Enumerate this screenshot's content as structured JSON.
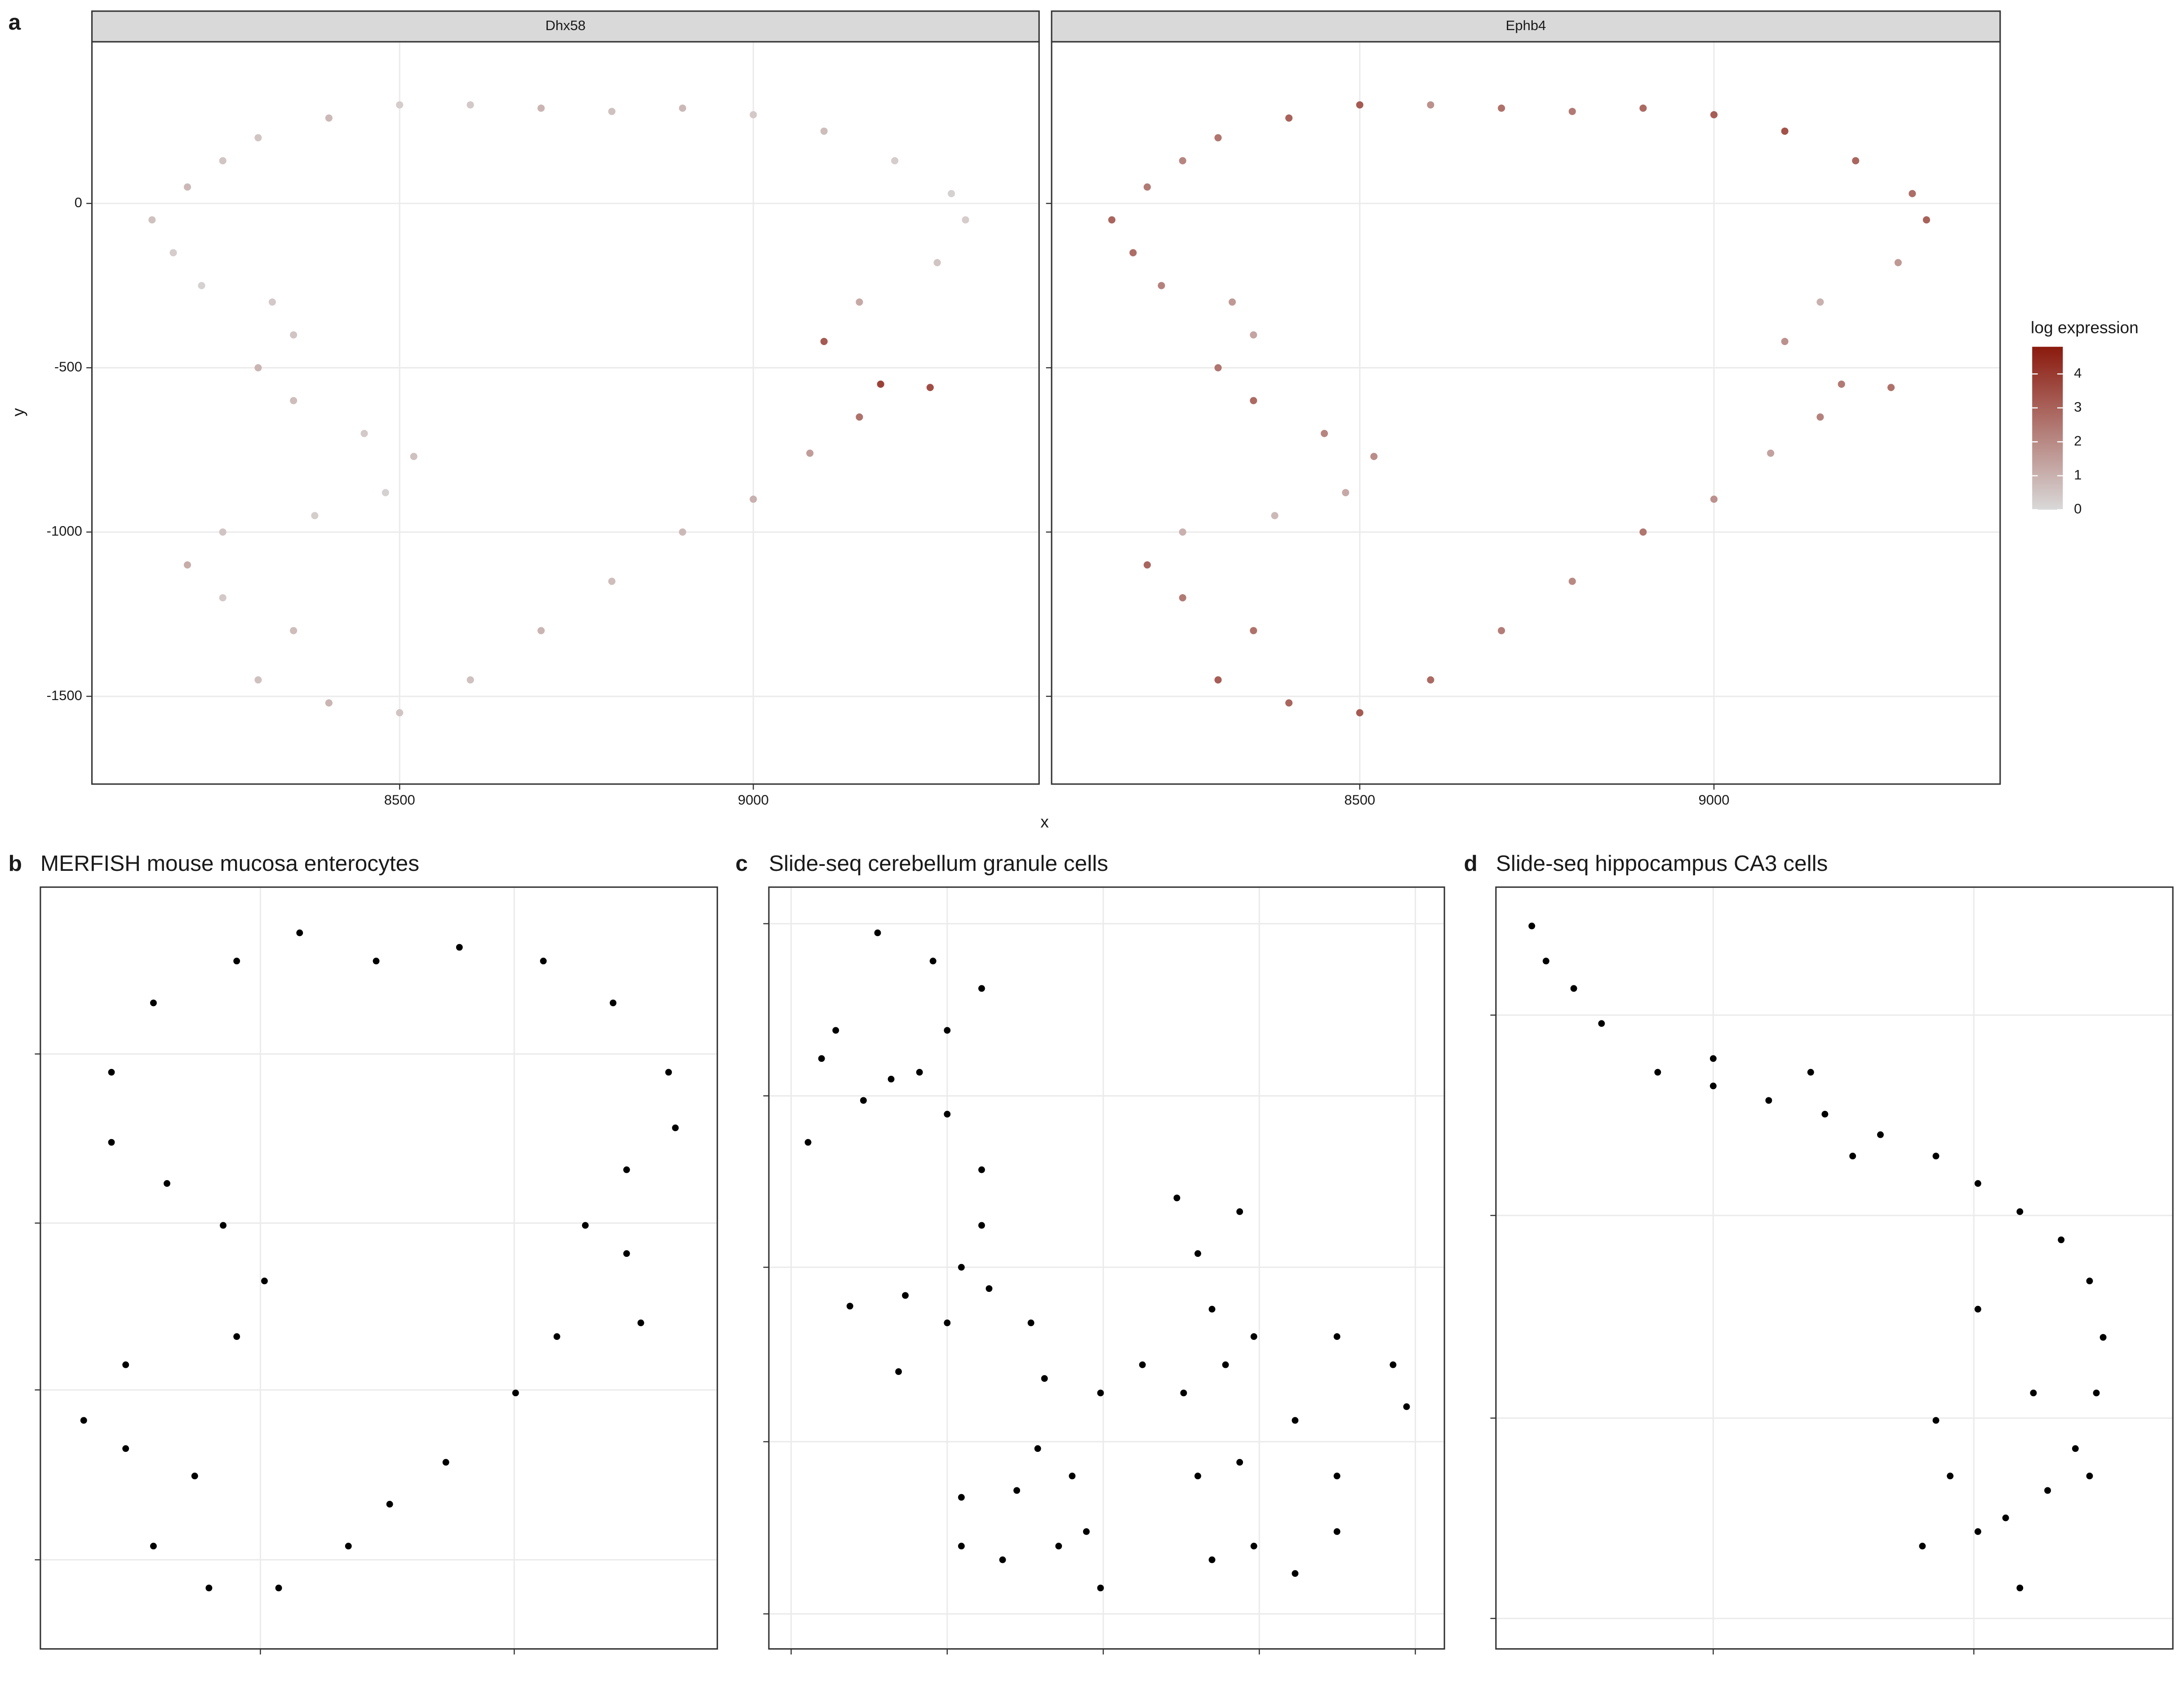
{
  "chart_data": [
    {
      "type": "scatter",
      "panel_label": "a",
      "xlabel": "x",
      "ylabel": "y",
      "x": [
        8300,
        8400,
        8500,
        8600,
        8700,
        8800,
        8900,
        9000,
        9100,
        9200,
        9280,
        9300,
        9260,
        9150,
        9100,
        9180,
        9250,
        9150,
        9080,
        9000,
        8900,
        8800,
        8700,
        8600,
        8500,
        8400,
        8300,
        8350,
        8250,
        8200,
        8250,
        8380,
        8480,
        8520,
        8450,
        8350,
        8300,
        8350,
        8320,
        8220,
        8180,
        8150,
        8200,
        8250
      ],
      "y": [
        200,
        260,
        300,
        300,
        290,
        280,
        290,
        270,
        220,
        130,
        30,
        -50,
        -180,
        -300,
        -420,
        -550,
        -560,
        -650,
        -760,
        -900,
        -1000,
        -1150,
        -1300,
        -1450,
        -1550,
        -1520,
        -1450,
        -1300,
        -1200,
        -1100,
        -1000,
        -950,
        -880,
        -770,
        -700,
        -600,
        -500,
        -400,
        -300,
        -250,
        -150,
        -50,
        50,
        130
      ],
      "series": [
        {
          "name": "Dhx58",
          "values": [
            0.5,
            0.8,
            0.3,
            0.4,
            0.9,
            0.6,
            0.8,
            0.4,
            0.7,
            0.3,
            0.2,
            0.3,
            0.5,
            1.2,
            3.2,
            3.8,
            3.5,
            2.6,
            1.5,
            1.0,
            0.8,
            0.7,
            0.9,
            0.6,
            0.5,
            0.9,
            0.6,
            0.7,
            0.4,
            1.1,
            0.5,
            0.3,
            0.2,
            0.6,
            0.4,
            0.7,
            0.9,
            0.5,
            0.4,
            0.2,
            0.3,
            0.6,
            0.8,
            0.5
          ]
        },
        {
          "name": "Ephb4",
          "values": [
            2.5,
            3.0,
            3.2,
            1.8,
            2.6,
            2.4,
            2.8,
            3.1,
            3.4,
            2.9,
            2.7,
            3.0,
            1.6,
            1.0,
            1.8,
            2.4,
            2.6,
            2.2,
            1.4,
            1.8,
            2.5,
            2.0,
            2.3,
            2.8,
            3.2,
            2.9,
            3.1,
            2.6,
            2.4,
            2.9,
            1.0,
            0.8,
            1.2,
            1.9,
            2.1,
            2.8,
            2.5,
            1.3,
            1.6,
            2.2,
            2.7,
            2.9,
            2.4,
            2.1
          ]
        }
      ],
      "xlim": [
        8065,
        9404
      ],
      "xticks": [
        8500,
        9000
      ],
      "ylim": [
        -1767,
        492
      ],
      "yticks": [
        0,
        -500,
        -1000,
        -1500
      ],
      "grid": true,
      "color_label": "log expression",
      "color_lim": [
        0,
        4.8
      ],
      "color_ticks": [
        0,
        1,
        2,
        3,
        4
      ],
      "colors": [
        "#d9d9d9",
        "#8b1a0e"
      ]
    },
    {
      "type": "scatter",
      "panel_label": "b",
      "title": "MERFISH mouse mucosa enterocytes",
      "color": "#000000",
      "x": [
        16.7,
        29.0,
        38.3,
        49.6,
        61.9,
        74.3,
        84.6,
        92.8,
        93.8,
        86.6,
        80.5,
        86.6,
        88.7,
        76.3,
        70.2,
        59.9,
        51.6,
        45.5,
        35.2,
        24.9,
        16.7,
        22.8,
        12.6,
        6.4,
        12.6,
        29.0,
        33.1,
        27.0,
        18.7,
        10.5,
        10.5
      ],
      "y": [
        84.8,
        90.3,
        94.0,
        90.3,
        92.1,
        90.3,
        84.8,
        75.7,
        68.4,
        62.9,
        55.6,
        51.9,
        42.8,
        41.0,
        33.6,
        24.5,
        19.0,
        13.5,
        8.0,
        8.0,
        13.5,
        22.7,
        26.3,
        30.0,
        37.3,
        41.0,
        48.3,
        55.6,
        61.1,
        66.5,
        75.7
      ],
      "xlim": [
        0,
        100
      ],
      "xticks": [
        32.5,
        70
      ],
      "ylim": [
        0,
        100
      ],
      "yticks": [
        78.1,
        55.9,
        34.0,
        11.7
      ],
      "grid": true,
      "tick_labels": false
    },
    {
      "type": "scatter",
      "panel_label": "c",
      "title": "Slide-seq cerebellum granule cells",
      "color": "#000000",
      "x": [
        16.1,
        24.3,
        31.5,
        26.4,
        22.3,
        18.1,
        5.8,
        7.8,
        9.9,
        14.0,
        26.4,
        31.5,
        31.5,
        28.5,
        20.2,
        12.0,
        19.2,
        26.4,
        32.6,
        38.8,
        40.8,
        39.8,
        36.7,
        28.5,
        28.5,
        34.6,
        42.9,
        44.9,
        49.1,
        55.3,
        61.4,
        63.5,
        65.6,
        49.1,
        47.0,
        60.4,
        69.7,
        63.5,
        65.6,
        71.8,
        84.1,
        92.4,
        94.4,
        67.6,
        77.9,
        84.1,
        84.1,
        77.9,
        71.8,
        69.7
      ],
      "y": [
        94.0,
        90.3,
        86.7,
        81.2,
        75.7,
        74.8,
        66.5,
        77.5,
        81.2,
        72.0,
        70.2,
        62.9,
        55.6,
        50.1,
        46.4,
        45.0,
        36.4,
        42.8,
        47.3,
        42.8,
        35.5,
        26.3,
        20.8,
        19.9,
        13.5,
        11.7,
        13.5,
        22.7,
        33.6,
        37.3,
        33.6,
        22.7,
        11.7,
        8.0,
        15.4,
        59.2,
        57.4,
        51.9,
        44.6,
        41.0,
        41.0,
        37.3,
        31.8,
        37.3,
        30.0,
        22.7,
        15.4,
        9.9,
        13.5,
        24.5
      ],
      "xlim": [
        0,
        100
      ],
      "xticks": [
        3.3,
        26.4,
        49.5,
        72.6,
        95.7
      ],
      "ylim": [
        0,
        100
      ],
      "yticks": [
        95.2,
        72.6,
        50.1,
        27.2,
        4.6
      ],
      "grid": true,
      "tick_labels": false
    },
    {
      "type": "scatter",
      "panel_label": "d",
      "title": "Slide-seq hippocampus CA3 cells",
      "color": "#000000",
      "x": [
        5.3,
        7.4,
        11.5,
        15.6,
        23.9,
        32.1,
        40.3,
        48.6,
        56.8,
        65.0,
        71.2,
        77.4,
        83.5,
        87.7,
        89.7,
        88.7,
        85.6,
        81.5,
        75.3,
        71.2,
        67.1,
        65.0,
        71.2,
        63.0,
        77.4,
        32.1,
        46.5,
        52.7,
        79.4,
        87.7
      ],
      "y": [
        94.9,
        90.3,
        86.7,
        82.1,
        75.7,
        73.9,
        72.0,
        70.2,
        67.5,
        64.7,
        61.1,
        57.4,
        53.7,
        48.3,
        40.9,
        33.6,
        26.3,
        20.8,
        17.2,
        15.4,
        22.7,
        30.0,
        44.6,
        13.5,
        8.0,
        77.5,
        75.7,
        64.7,
        33.6,
        22.7
      ],
      "xlim": [
        0,
        100
      ],
      "xticks": [
        32.1,
        70.6
      ],
      "ylim": [
        0,
        100
      ],
      "yticks": [
        83.2,
        56.9,
        30.3,
        4.0
      ],
      "grid": true,
      "tick_labels": false
    }
  ]
}
